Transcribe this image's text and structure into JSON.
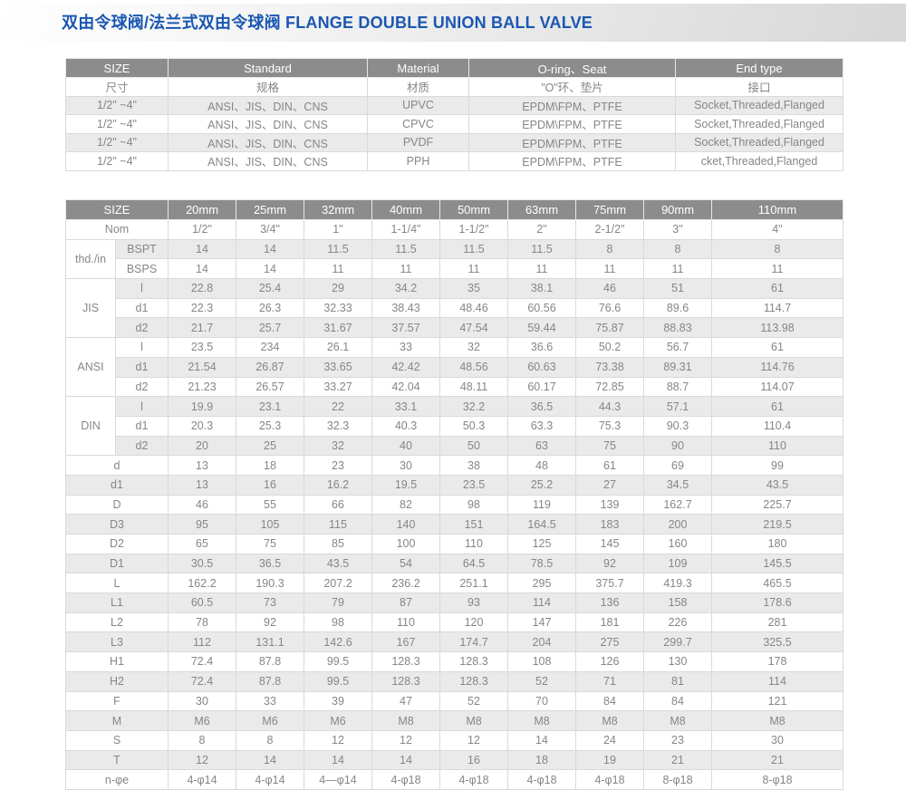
{
  "header": {
    "title_zh": "双由令球阀/法兰式双由令球阀",
    "title_en": "FLANGE DOUBLE UNION BALL VALVE"
  },
  "spec_table": {
    "headers_en": [
      "SIZE",
      "Standard",
      "Material",
      "O-ring、Seat",
      "End type"
    ],
    "headers_zh": [
      "尺寸",
      "规格",
      "材质",
      "\"O\"环、垫片",
      "接口"
    ],
    "rows": [
      [
        "1/2\" ~4\"",
        "ANSI、JIS、DIN、CNS",
        "UPVC",
        "EPDM\\FPM、PTFE",
        "Socket,Threaded,Flanged"
      ],
      [
        "1/2\" ~4\"",
        "ANSI、JIS、DIN、CNS",
        "CPVC",
        "EPDM\\FPM、PTFE",
        "Socket,Threaded,Flanged"
      ],
      [
        "1/2\" ~4\"",
        "ANSI、JIS、DIN、CNS",
        "PVDF",
        "EPDM\\FPM、PTFE",
        "Socket,Threaded,Flanged"
      ],
      [
        "1/2\" ~4\"",
        "ANSI、JIS、DIN、CNS",
        "PPH",
        "EPDM\\FPM、PTFE",
        "cket,Threaded,Flanged"
      ]
    ]
  },
  "dim_table": {
    "size_label": "SIZE",
    "columns": [
      "20mm",
      "25mm",
      "32mm",
      "40mm",
      "50mm",
      "63mm",
      "75mm",
      "90mm",
      "110mm"
    ],
    "nom_label": "Nom",
    "nom": [
      "1/2\"",
      "3/4\"",
      "1\"",
      "1-1/4\"",
      "1-1/2\"",
      "2\"",
      "2-1/2\"",
      "3\"",
      "4\""
    ],
    "groups": [
      {
        "label": "thd./in",
        "rows": [
          {
            "sub": "BSPT",
            "values": [
              "14",
              "14",
              "11.5",
              "11.5",
              "11.5",
              "11.5",
              "8",
              "8",
              "8"
            ]
          },
          {
            "sub": "BSPS",
            "values": [
              "14",
              "14",
              "11",
              "11",
              "11",
              "11",
              "11",
              "11",
              "11"
            ]
          }
        ]
      },
      {
        "label": "JIS",
        "rows": [
          {
            "sub": "l",
            "values": [
              "22.8",
              "25.4",
              "29",
              "34.2",
              "35",
              "38.1",
              "46",
              "51",
              "61"
            ]
          },
          {
            "sub": "d1",
            "values": [
              "22.3",
              "26.3",
              "32.33",
              "38.43",
              "48.46",
              "60.56",
              "76.6",
              "89.6",
              "114.7"
            ]
          },
          {
            "sub": "d2",
            "values": [
              "21.7",
              "25.7",
              "31.67",
              "37.57",
              "47.54",
              "59.44",
              "75.87",
              "88.83",
              "113.98"
            ]
          }
        ]
      },
      {
        "label": "ANSI",
        "rows": [
          {
            "sub": "l",
            "values": [
              "23.5",
              "234",
              "26.1",
              "33",
              "32",
              "36.6",
              "50.2",
              "56.7",
              "61"
            ]
          },
          {
            "sub": "d1",
            "values": [
              "21.54",
              "26.87",
              "33.65",
              "42.42",
              "48.56",
              "60.63",
              "73.38",
              "89.31",
              "114.76"
            ]
          },
          {
            "sub": "d2",
            "values": [
              "21.23",
              "26.57",
              "33.27",
              "42.04",
              "48.11",
              "60.17",
              "72.85",
              "88.7",
              "114.07"
            ]
          }
        ]
      },
      {
        "label": "DIN",
        "rows": [
          {
            "sub": "l",
            "values": [
              "19.9",
              "23.1",
              "22",
              "33.1",
              "32.2",
              "36.5",
              "44.3",
              "57.1",
              "61"
            ]
          },
          {
            "sub": "d1",
            "values": [
              "20.3",
              "25.3",
              "32.3",
              "40.3",
              "50.3",
              "63.3",
              "75.3",
              "90.3",
              "110.4"
            ]
          },
          {
            "sub": "d2",
            "values": [
              "20",
              "25",
              "32",
              "40",
              "50",
              "63",
              "75",
              "90",
              "110"
            ]
          }
        ]
      }
    ],
    "simple_rows": [
      {
        "label": "d",
        "values": [
          "13",
          "18",
          "23",
          "30",
          "38",
          "48",
          "61",
          "69",
          "99"
        ]
      },
      {
        "label": "d1",
        "values": [
          "13",
          "16",
          "16.2",
          "19.5",
          "23.5",
          "25.2",
          "27",
          "34.5",
          "43.5"
        ]
      },
      {
        "label": "D",
        "values": [
          "46",
          "55",
          "66",
          "82",
          "98",
          "119",
          "139",
          "162.7",
          "225.7"
        ]
      },
      {
        "label": "D3",
        "values": [
          "95",
          "105",
          "115",
          "140",
          "151",
          "164.5",
          "183",
          "200",
          "219.5"
        ]
      },
      {
        "label": "D2",
        "values": [
          "65",
          "75",
          "85",
          "100",
          "110",
          "125",
          "145",
          "160",
          "180"
        ]
      },
      {
        "label": "D1",
        "values": [
          "30.5",
          "36.5",
          "43.5",
          "54",
          "64.5",
          "78.5",
          "92",
          "109",
          "145.5"
        ]
      },
      {
        "label": "L",
        "values": [
          "162.2",
          "190.3",
          "207.2",
          "236.2",
          "251.1",
          "295",
          "375.7",
          "419.3",
          "465.5"
        ]
      },
      {
        "label": "L1",
        "values": [
          "60.5",
          "73",
          "79",
          "87",
          "93",
          "114",
          "136",
          "158",
          "178.6"
        ]
      },
      {
        "label": "L2",
        "values": [
          "78",
          "92",
          "98",
          "110",
          "120",
          "147",
          "181",
          "226",
          "281"
        ]
      },
      {
        "label": "L3",
        "values": [
          "112",
          "131.1",
          "142.6",
          "167",
          "174.7",
          "204",
          "275",
          "299.7",
          "325.5"
        ]
      },
      {
        "label": "H1",
        "values": [
          "72.4",
          "87.8",
          "99.5",
          "128.3",
          "128.3",
          "108",
          "126",
          "130",
          "178"
        ]
      },
      {
        "label": "H2",
        "values": [
          "72.4",
          "87.8",
          "99.5",
          "128.3",
          "128.3",
          "52",
          "71",
          "81",
          "114"
        ]
      },
      {
        "label": "F",
        "values": [
          "30",
          "33",
          "39",
          "47",
          "52",
          "70",
          "84",
          "84",
          "121"
        ]
      },
      {
        "label": "M",
        "values": [
          "M6",
          "M6",
          "M6",
          "M8",
          "M8",
          "M8",
          "M8",
          "M8",
          "M8"
        ]
      },
      {
        "label": "S",
        "values": [
          "8",
          "8",
          "12",
          "12",
          "12",
          "14",
          "24",
          "23",
          "30"
        ]
      },
      {
        "label": "T",
        "values": [
          "12",
          "14",
          "14",
          "14",
          "16",
          "18",
          "19",
          "21",
          "21"
        ]
      },
      {
        "label": "n-φe",
        "values": [
          "4-φ14",
          "4-φ14",
          "4—φ14",
          "4-φ18",
          "4-φ18",
          "4-φ18",
          "4-φ18",
          "8-φ18",
          "8-φ18"
        ]
      }
    ]
  },
  "colors": {
    "title_blue": "#1a57b2",
    "header_gray": "#8c8c8c",
    "stripe_gray": "#eaeaea",
    "border_gray": "#d9d9d9",
    "text_gray": "#868686"
  }
}
